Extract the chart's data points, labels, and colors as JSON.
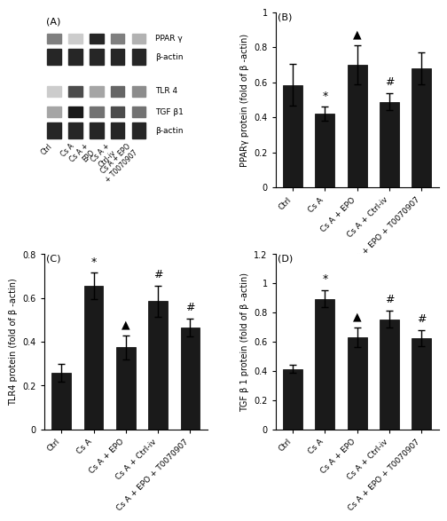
{
  "categories": [
    "Ctrl",
    "Cs A",
    "Cs A + EPO",
    "Cs A + Ctrl-iv",
    "Cs A + EPO + T0070907"
  ],
  "panel_B": {
    "label": "(B)",
    "ylabel": "PPARγ protein (fold of β -actin)",
    "ylim": [
      0,
      1.0
    ],
    "yticks": [
      0,
      0.2,
      0.4,
      0.6,
      0.8,
      1.0
    ],
    "values": [
      0.585,
      0.42,
      0.7,
      0.49,
      0.68
    ],
    "errors": [
      0.12,
      0.04,
      0.11,
      0.05,
      0.09
    ],
    "annotations": [
      "",
      "*",
      "▲",
      "#",
      ""
    ],
    "bar_color": "#1a1a1a"
  },
  "panel_C": {
    "label": "(C)",
    "ylabel": "TLR4 protein (fold of β -actin)",
    "ylim": [
      0,
      0.8
    ],
    "yticks": [
      0,
      0.2,
      0.4,
      0.6,
      0.8
    ],
    "values": [
      0.26,
      0.655,
      0.375,
      0.585,
      0.465
    ],
    "errors": [
      0.04,
      0.06,
      0.055,
      0.07,
      0.04
    ],
    "annotations": [
      "",
      "*",
      "▲",
      "#",
      "#"
    ],
    "bar_color": "#1a1a1a"
  },
  "panel_D": {
    "label": "(D)",
    "ylabel": "TGF β 1 protein (fold of β -actin)",
    "ylim": [
      0,
      1.2
    ],
    "yticks": [
      0,
      0.2,
      0.4,
      0.6,
      0.8,
      1.0,
      1.2
    ],
    "values": [
      0.415,
      0.895,
      0.63,
      0.755,
      0.625
    ],
    "errors": [
      0.025,
      0.06,
      0.065,
      0.06,
      0.055
    ],
    "annotations": [
      "",
      "*",
      "▲",
      "#",
      "#"
    ],
    "bar_color": "#1a1a1a"
  },
  "panel_A": {
    "label": "(A)",
    "bands": [
      "PPAR γ",
      "β-actin",
      "TLR 4",
      "TGF β1",
      "β-actin"
    ],
    "groups": [
      "Ctrl",
      "Cs A",
      "Cs A + EPO",
      "Cs A + Ctrl-iv",
      "Cs A + EPO\n+ T0070907"
    ]
  },
  "tick_fontsize": 7,
  "label_fontsize": 7,
  "annotation_fontsize": 9,
  "bar_width": 0.6
}
